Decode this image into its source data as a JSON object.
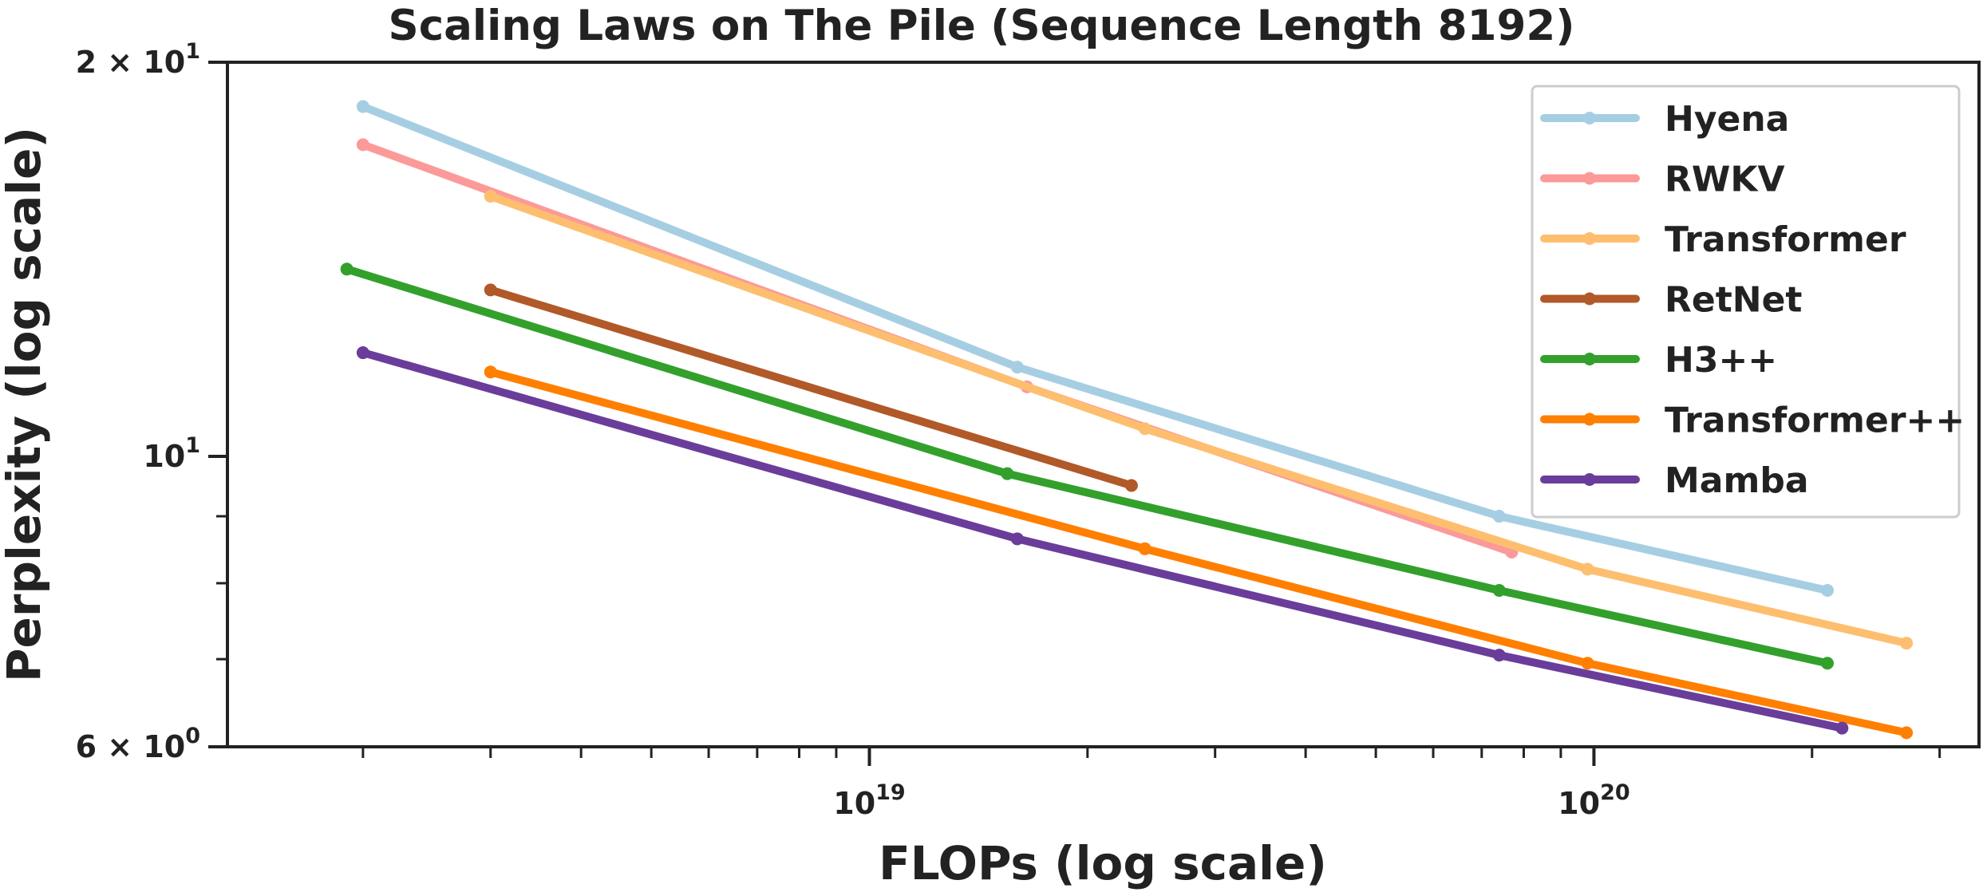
{
  "chart_data": {
    "type": "line",
    "title": "Scaling Laws on The Pile (Sequence Length 8192)",
    "xlabel": "FLOPs (log scale)",
    "ylabel": "Perplexity (log scale)",
    "xscale": "log",
    "yscale": "log",
    "xlim": [
      1.3e+18,
      3.4e+20
    ],
    "ylim": [
      6,
      20
    ],
    "grid": false,
    "legend_position": "top-right",
    "x_tick_labels": [
      {
        "base": "10",
        "exp": "19",
        "value": 1e+19
      },
      {
        "base": "10",
        "exp": "20",
        "value": 1e+20
      }
    ],
    "y_tick_labels": [
      {
        "mantissa": "2",
        "times": "×",
        "base": "10",
        "exp": "1",
        "value": 20
      },
      {
        "mantissa": "",
        "times": "",
        "base": "10",
        "exp": "1",
        "value": 10
      },
      {
        "mantissa": "6",
        "times": "×",
        "base": "10",
        "exp": "0",
        "value": 6
      }
    ],
    "series": [
      {
        "name": "Hyena",
        "color": "#a6cee3",
        "points": [
          [
            2e+18,
            18.5
          ],
          [
            1.6e+19,
            11.7
          ],
          [
            7.4e+19,
            9.0
          ],
          [
            2.1e+20,
            7.9
          ]
        ]
      },
      {
        "name": "RWKV",
        "color": "#fb9a99",
        "points": [
          [
            2e+18,
            17.3
          ],
          [
            1.65e+19,
            11.3
          ],
          [
            7.7e+19,
            8.45
          ]
        ]
      },
      {
        "name": "Transformer",
        "color": "#fdbf6f",
        "points": [
          [
            3e+18,
            15.8
          ],
          [
            2.4e+19,
            10.5
          ],
          [
            9.8e+19,
            8.2
          ],
          [
            2.7e+20,
            7.2
          ]
        ]
      },
      {
        "name": "RetNet",
        "color": "#b15928",
        "points": [
          [
            3e+18,
            13.4
          ],
          [
            2.3e+19,
            9.5
          ]
        ]
      },
      {
        "name": "H3++",
        "color": "#33a02c",
        "points": [
          [
            1.9e+18,
            13.9
          ],
          [
            1.55e+19,
            9.7
          ],
          [
            7.4e+19,
            7.9
          ],
          [
            2.1e+20,
            6.95
          ]
        ]
      },
      {
        "name": "Transformer++",
        "color": "#ff7f00",
        "points": [
          [
            3e+18,
            11.6
          ],
          [
            2.4e+19,
            8.5
          ],
          [
            9.8e+19,
            6.95
          ],
          [
            2.7e+20,
            6.15
          ]
        ]
      },
      {
        "name": "Mamba",
        "color": "#6a3d9a",
        "points": [
          [
            2e+18,
            12.0
          ],
          [
            1.6e+19,
            8.65
          ],
          [
            7.4e+19,
            7.05
          ],
          [
            2.2e+20,
            6.2
          ]
        ]
      }
    ]
  }
}
